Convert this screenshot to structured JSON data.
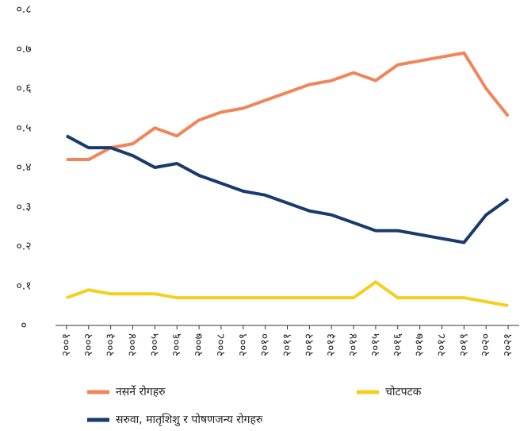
{
  "chart_data": {
    "type": "line",
    "categories": [
      "२००१",
      "२००२",
      "२००३",
      "२००४",
      "२००५",
      "२००६",
      "२००७",
      "२००८",
      "२००९",
      "२०१०",
      "२०११",
      "२०१२",
      "२०१३",
      "२०१४",
      "२०१५",
      "२०१६",
      "२०१७",
      "२०१८",
      "२०१९",
      "२०२०",
      "२०२१"
    ],
    "series": [
      {
        "name": "नसर्ने रोगहरु",
        "color": "#f0855a",
        "values": [
          0.42,
          0.42,
          0.45,
          0.46,
          0.5,
          0.48,
          0.52,
          0.54,
          0.55,
          0.57,
          0.59,
          0.61,
          0.62,
          0.64,
          0.62,
          0.66,
          0.67,
          0.68,
          0.69,
          0.6,
          0.53
        ]
      },
      {
        "name": "चोटपटक",
        "color": "#f5cf1f",
        "values": [
          0.07,
          0.09,
          0.08,
          0.08,
          0.08,
          0.07,
          0.07,
          0.07,
          0.07,
          0.07,
          0.07,
          0.07,
          0.07,
          0.07,
          0.11,
          0.07,
          0.07,
          0.07,
          0.07,
          0.06,
          0.05
        ]
      },
      {
        "name": "सरुवा, मातृशिशु र पोषणजन्य रोगहरु",
        "color": "#1a3a6e",
        "values": [
          0.48,
          0.45,
          0.45,
          0.43,
          0.4,
          0.41,
          0.38,
          0.36,
          0.34,
          0.33,
          0.31,
          0.29,
          0.28,
          0.26,
          0.24,
          0.24,
          0.23,
          0.22,
          0.21,
          0.28,
          0.32
        ]
      }
    ],
    "ylim": [
      0,
      0.8
    ],
    "yticks": [
      {
        "value": 0,
        "label": "०"
      },
      {
        "value": 0.1,
        "label": "०.१"
      },
      {
        "value": 0.2,
        "label": "०.२"
      },
      {
        "value": 0.3,
        "label": "०.३"
      },
      {
        "value": 0.4,
        "label": "०.४"
      },
      {
        "value": 0.5,
        "label": "०.५"
      },
      {
        "value": 0.6,
        "label": "०.६"
      },
      {
        "value": 0.7,
        "label": "०.७"
      },
      {
        "value": 0.8,
        "label": "०.८"
      }
    ],
    "grid": false
  }
}
